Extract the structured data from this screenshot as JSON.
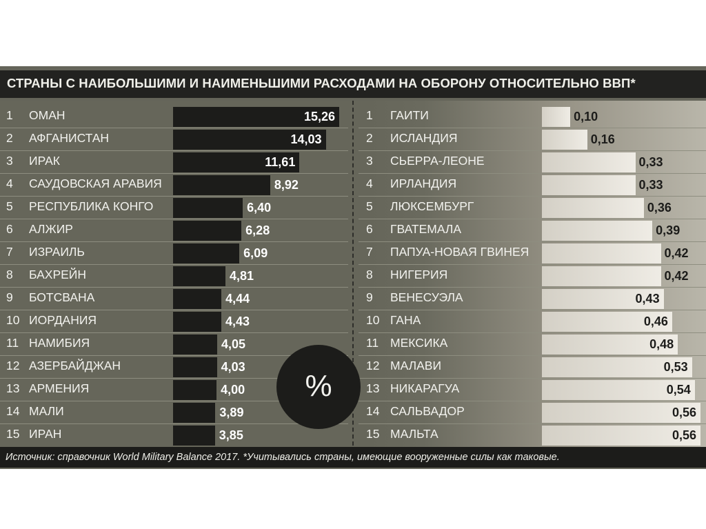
{
  "title": "СТРАНЫ С НАИБОЛЬШИМИ И НАИМЕНЬШИМИ РАСХОДАМИ НА ОБОРОНУ ОТНОСИТЕЛЬНО ВВП*",
  "footer": "Источник: справочник World Military Balance 2017.   *Учитывались страны, имеющие вооруженные силы как таковые.",
  "center_symbol": "%",
  "colors": {
    "frame": "#65655a",
    "dark_bar": "#1c1c1a",
    "light_bar": "#efece5",
    "text": "#f2f2ee"
  },
  "chart_data": [
    {
      "type": "bar",
      "orientation": "horizontal",
      "ranks": [
        "1",
        "2",
        "3",
        "4",
        "5",
        "6",
        "7",
        "8",
        "9",
        "10",
        "11",
        "12",
        "13",
        "14",
        "15"
      ],
      "categories": [
        "ОМАН",
        "АФГАНИСТАН",
        "ИРАК",
        "САУДОВСКАЯ АРАВИЯ",
        "РЕСПУБЛИКА КОНГО",
        "АЛЖИР",
        "ИЗРАИЛЬ",
        "БАХРЕЙН",
        "БОТСВАНА",
        "ИОРДАНИЯ",
        "НАМИБИЯ",
        "АЗЕРБАЙДЖАН",
        "АРМЕНИЯ",
        "МАЛИ",
        "ИРАН"
      ],
      "values": [
        15.26,
        14.03,
        11.61,
        8.92,
        6.4,
        6.28,
        6.09,
        4.81,
        4.44,
        4.43,
        4.05,
        4.03,
        4.0,
        3.89,
        3.85
      ],
      "labels": [
        "15,26",
        "14,03",
        "11,61",
        "8,92",
        "6,40",
        "6,28",
        "6,09",
        "4,81",
        "4,44",
        "4,43",
        "4,05",
        "4,03",
        "4,00",
        "3,89",
        "3,85"
      ]
    },
    {
      "type": "bar",
      "orientation": "horizontal",
      "ranks": [
        "1",
        "2",
        "3",
        "4",
        "5",
        "6",
        "7",
        "8",
        "9",
        "10",
        "11",
        "12",
        "13",
        "14",
        "15"
      ],
      "categories": [
        "ГАИТИ",
        "ИСЛАНДИЯ",
        "СЬЕРРА-ЛЕОНЕ",
        "ИРЛАНДИЯ",
        "ЛЮКСЕМБУРГ",
        "ГВАТЕМАЛА",
        "ПАПУА-НОВАЯ ГВИНЕЯ",
        "НИГЕРИЯ",
        "ВЕНЕСУЭЛА",
        "ГАНА",
        "МЕКСИКА",
        "МАЛАВИ",
        "НИКАРАГУА",
        "САЛЬВАДОР",
        "МАЛЬТА"
      ],
      "values": [
        0.1,
        0.16,
        0.33,
        0.33,
        0.36,
        0.39,
        0.42,
        0.42,
        0.43,
        0.46,
        0.48,
        0.53,
        0.54,
        0.56,
        0.56
      ],
      "labels": [
        "0,10",
        "0,16",
        "0,33",
        "0,33",
        "0,36",
        "0,39",
        "0,42",
        "0,42",
        "0,43",
        "0,46",
        "0,48",
        "0,53",
        "0,54",
        "0,56",
        "0,56"
      ]
    }
  ]
}
